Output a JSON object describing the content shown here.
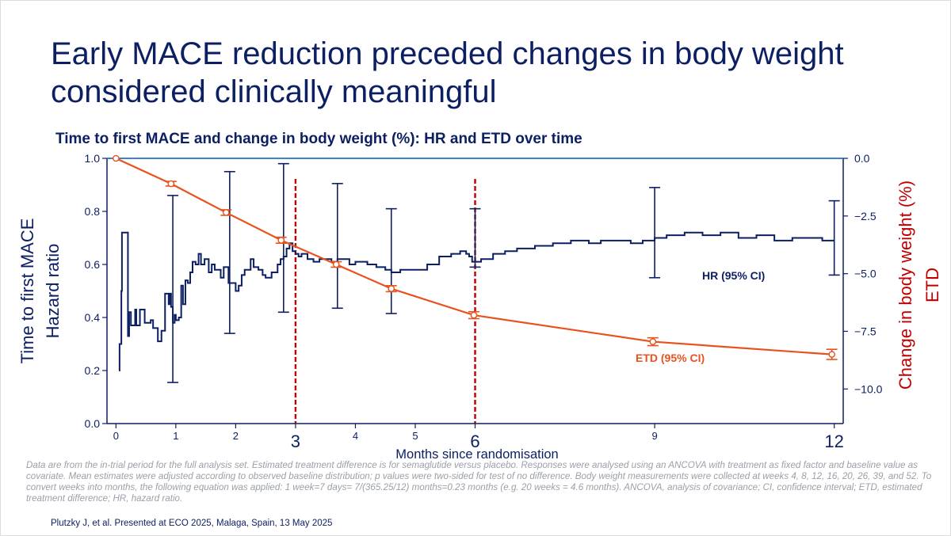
{
  "slide": {
    "title": "Early MACE reduction preceded changes in body weight considered clinically meaningful",
    "subtitle": "Time to first MACE and change in body weight (%): HR and ETD over time",
    "footnote": "Data are from the in-trial period for the full analysis set. Estimated treatment difference is for semaglutide versus placebo. Responses were analysed using an ANCOVA with treatment as fixed factor and baseline value as covariate. Mean estimates were adjusted according to observed baseline distribution; p values were two-sided for test of no difference. Body weight measurements were collected at weeks 4, 8, 12, 16, 20, 26, 39, and 52. To convert weeks into months, the following equation was applied: 1 week=7 days= 7/(365.25/12) months=0.23 months (e.g. 20 weeks = 4.6 months). ANCOVA, analysis of covariance; CI, confidence interval; ETD, estimated treatment difference; HR, hazard ratio.",
    "citation": "Plutzky J, et al. Presented at ECO 2025, Malaga, Spain, 13 May 2025"
  },
  "colors": {
    "navy": "#0c1f62",
    "orange": "#e8521f",
    "red": "#c00000",
    "ref_line": "#1f6fc6"
  },
  "chart_data": {
    "type": "line",
    "title": "Time to first MACE and change in body weight (%): HR and ETD over time",
    "xlabel": "Months since randomisation",
    "ylabel_left": [
      "Time to first MACE",
      "Hazard ratio"
    ],
    "ylabel_right": [
      "Change in body weight (%)",
      "ETD"
    ],
    "xlim": [
      -0.15,
      12.15
    ],
    "ylim_left": [
      0,
      1.0
    ],
    "ylim_right": [
      -11.5,
      0
    ],
    "x_ticks": [
      {
        "v": 0,
        "label": "0",
        "big": false
      },
      {
        "v": 1,
        "label": "1",
        "big": false
      },
      {
        "v": 2,
        "label": "2",
        "big": false
      },
      {
        "v": 3,
        "label": "3",
        "big": true
      },
      {
        "v": 4,
        "label": "4",
        "big": false
      },
      {
        "v": 5,
        "label": "5",
        "big": false
      },
      {
        "v": 6,
        "label": "6",
        "big": true
      },
      {
        "v": 9,
        "label": "9",
        "big": false
      },
      {
        "v": 12,
        "label": "12",
        "big": true
      }
    ],
    "y_left_ticks": [
      {
        "v": 0.0,
        "label": "0.0"
      },
      {
        "v": 0.2,
        "label": "0.2"
      },
      {
        "v": 0.4,
        "label": "0.4"
      },
      {
        "v": 0.6,
        "label": "0.6"
      },
      {
        "v": 0.8,
        "label": "0.8"
      },
      {
        "v": 1.0,
        "label": "1.0"
      }
    ],
    "y_right_ticks": [
      {
        "v": 0,
        "label": "0.0"
      },
      {
        "v": -2.5,
        "label": "−2.5"
      },
      {
        "v": -5.0,
        "label": "−5.0"
      },
      {
        "v": -7.5,
        "label": "−7.5"
      },
      {
        "v": -10.0,
        "label": "−10.0"
      }
    ],
    "reference_line_hr": 1.0,
    "vertical_markers": [
      3,
      6
    ],
    "series": [
      {
        "name": "HR (95% CI)",
        "axis": "left",
        "x": [
          0.05,
          0.06,
          0.09,
          0.1,
          0.14,
          0.15,
          0.18,
          0.2,
          0.22,
          0.25,
          0.27,
          0.32,
          0.34,
          0.38,
          0.4,
          0.45,
          0.48,
          0.5,
          0.56,
          0.58,
          0.62,
          0.67,
          0.7,
          0.73,
          0.76,
          0.8,
          0.82,
          0.88,
          0.9,
          0.92,
          0.95,
          0.98,
          1.0,
          1.05,
          1.09,
          1.12,
          1.16,
          1.2,
          1.24,
          1.28,
          1.33,
          1.38,
          1.42,
          1.48,
          1.55,
          1.6,
          1.65,
          1.7,
          1.75,
          1.8,
          1.88,
          1.95,
          2.0,
          2.05,
          2.1,
          2.15,
          2.2,
          2.25,
          2.3,
          2.38,
          2.45,
          2.5,
          2.6,
          2.7,
          2.75,
          2.8,
          2.85,
          2.9,
          2.95,
          3.0,
          3.05,
          3.1,
          3.2,
          3.3,
          3.4,
          3.5,
          3.6,
          3.7,
          3.8,
          3.9,
          4.0,
          4.2,
          4.35,
          4.5,
          4.6,
          4.75,
          4.9,
          5.0,
          5.2,
          5.4,
          5.6,
          5.75,
          5.85,
          5.9,
          5.95,
          6.0,
          6.1,
          6.3,
          6.5,
          6.7,
          7.0,
          7.3,
          7.6,
          7.9,
          8.1,
          8.3,
          8.6,
          8.8,
          9.0,
          9.2,
          9.5,
          9.8,
          10.1,
          10.4,
          10.7,
          11.0,
          11.3,
          11.6,
          11.8,
          12.0
        ],
        "y": [
          0.2,
          0.3,
          0.5,
          0.72,
          0.72,
          0.72,
          0.72,
          0.33,
          0.42,
          0.37,
          0.37,
          0.43,
          0.37,
          0.37,
          0.43,
          0.43,
          0.38,
          0.38,
          0.38,
          0.39,
          0.36,
          0.36,
          0.31,
          0.31,
          0.35,
          0.35,
          0.49,
          0.45,
          0.49,
          0.44,
          0.38,
          0.41,
          0.39,
          0.4,
          0.52,
          0.45,
          0.54,
          0.53,
          0.57,
          0.61,
          0.6,
          0.64,
          0.6,
          0.62,
          0.57,
          0.6,
          0.58,
          0.58,
          0.55,
          0.59,
          0.53,
          0.53,
          0.5,
          0.52,
          0.56,
          0.58,
          0.58,
          0.62,
          0.59,
          0.58,
          0.56,
          0.55,
          0.57,
          0.6,
          0.62,
          0.63,
          0.66,
          0.68,
          0.65,
          0.64,
          0.63,
          0.64,
          0.62,
          0.61,
          0.62,
          0.62,
          0.61,
          0.62,
          0.62,
          0.6,
          0.61,
          0.6,
          0.59,
          0.58,
          0.57,
          0.58,
          0.58,
          0.58,
          0.6,
          0.63,
          0.64,
          0.65,
          0.64,
          0.63,
          0.61,
          0.61,
          0.62,
          0.64,
          0.65,
          0.66,
          0.67,
          0.68,
          0.69,
          0.68,
          0.69,
          0.69,
          0.68,
          0.69,
          0.7,
          0.71,
          0.72,
          0.71,
          0.72,
          0.7,
          0.71,
          0.69,
          0.7,
          0.7,
          0.69,
          0.69
        ],
        "ci": [
          {
            "x": 0.95,
            "lo": 0.155,
            "hi": 0.86
          },
          {
            "x": 1.9,
            "lo": 0.34,
            "hi": 0.95
          },
          {
            "x": 2.8,
            "lo": 0.42,
            "hi": 0.98
          },
          {
            "x": 3.7,
            "lo": 0.435,
            "hi": 0.905
          },
          {
            "x": 4.6,
            "lo": 0.415,
            "hi": 0.81
          },
          {
            "x": 6.0,
            "lo": 0.59,
            "hi": 0.81
          },
          {
            "x": 9.0,
            "lo": 0.55,
            "hi": 0.89
          },
          {
            "x": 12.0,
            "lo": 0.56,
            "hi": 0.84
          }
        ]
      },
      {
        "name": "ETD (95% CI)",
        "axis": "right",
        "x": [
          0,
          0.92,
          1.84,
          2.76,
          3.68,
          4.6,
          5.98,
          8.97,
          11.96
        ],
        "y": [
          0,
          -1.1,
          -2.35,
          -3.55,
          -4.6,
          -5.65,
          -6.8,
          -7.95,
          -8.5
        ],
        "ci_lo": [
          0,
          -1.2,
          -2.47,
          -3.68,
          -4.72,
          -5.78,
          -6.95,
          -8.12,
          -8.72
        ],
        "ci_hi": [
          0,
          -1.0,
          -2.23,
          -3.42,
          -4.48,
          -5.52,
          -6.65,
          -7.78,
          -8.28
        ]
      }
    ],
    "annotations": [
      {
        "text": "HR (95% CI)",
        "series": "HR (95% CI)"
      },
      {
        "text": "ETD (95% CI)",
        "series": "ETD (95% CI)"
      }
    ]
  }
}
